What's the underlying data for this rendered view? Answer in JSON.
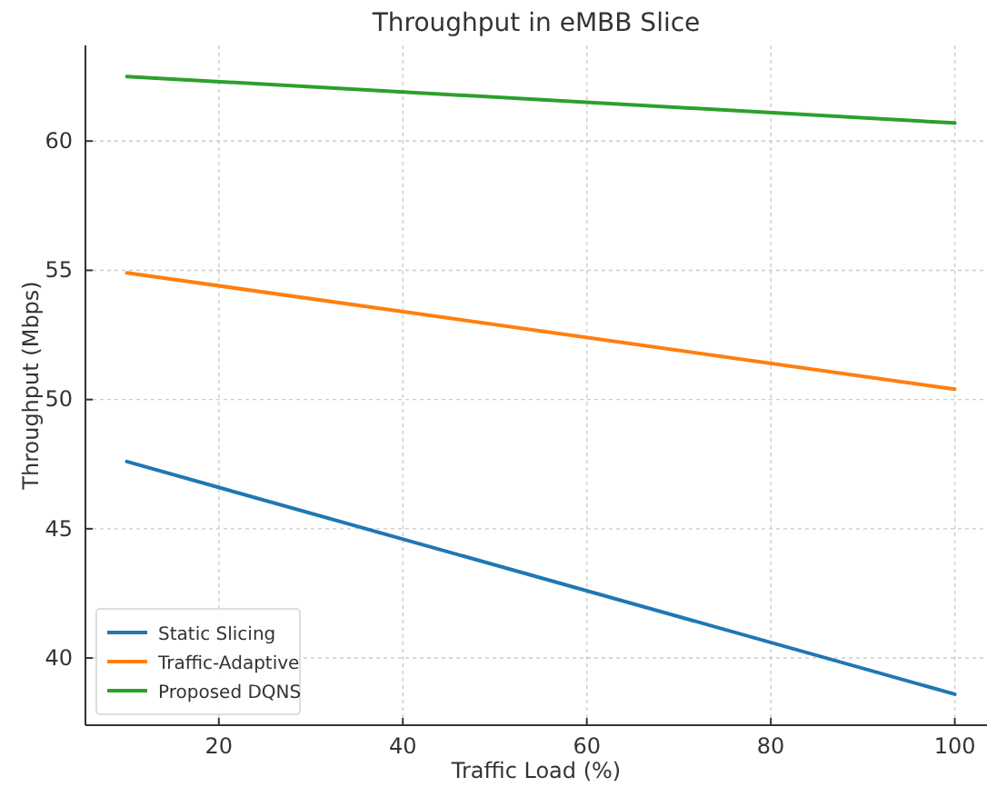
{
  "chart_data": {
    "type": "line",
    "title": "Throughput in eMBB Slice",
    "xlabel": "Traffic Load (%)",
    "ylabel": "Throughput (Mbps)",
    "x": [
      10,
      100
    ],
    "series": [
      {
        "name": "Static Slicing",
        "color": "#1f77b4",
        "values": [
          47.6,
          38.6
        ]
      },
      {
        "name": "Traffic-Adaptive",
        "color": "#ff7f0e",
        "values": [
          54.9,
          50.4
        ]
      },
      {
        "name": "Proposed DQNS",
        "color": "#2ca02c",
        "values": [
          62.5,
          60.7
        ]
      }
    ],
    "xlim": [
      5.5,
      103.5
    ],
    "xticks": [
      20,
      40,
      60,
      80,
      100
    ],
    "ylim": [
      37.4,
      63.7
    ],
    "yticks": [
      40,
      45,
      50,
      55,
      60
    ],
    "grid": true,
    "legend": "bottom left",
    "line_style": "solid",
    "marker": "none"
  }
}
